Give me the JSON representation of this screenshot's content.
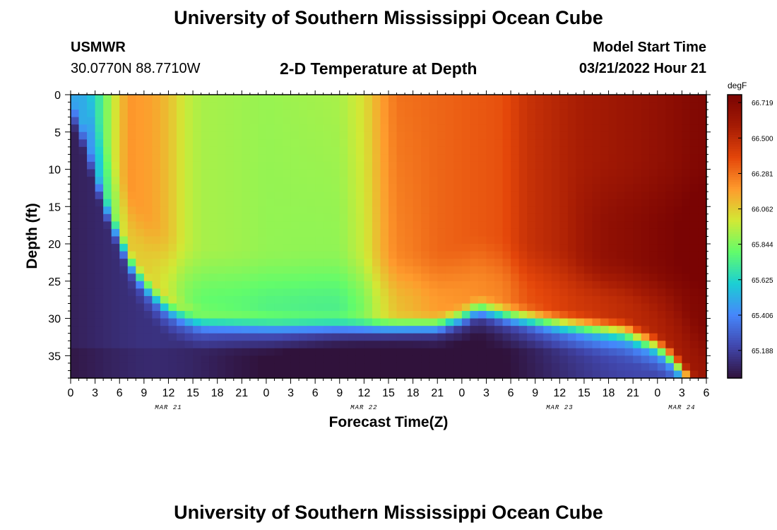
{
  "header": {
    "title": "University of Southern Mississippi Ocean Cube",
    "station_id": "USMWR",
    "coordinates": "30.0770N  88.7710W",
    "plot_title": "2-D Temperature at Depth",
    "model_start_label": "Model Start Time",
    "model_start_value": "03/21/2022 Hour 21"
  },
  "footer": {
    "title": "University of Southern Mississippi Ocean Cube"
  },
  "chart_data": {
    "type": "heatmap",
    "title": "2-D Temperature at Depth",
    "xlabel": "Forecast Time(Z)",
    "ylabel": "Depth (ft)",
    "units": "degF",
    "x_tick_labels": [
      "0",
      "3",
      "6",
      "9",
      "12",
      "15",
      "18",
      "21",
      "0",
      "3",
      "6",
      "9",
      "12",
      "15",
      "18",
      "21",
      "0",
      "3",
      "6",
      "9",
      "12",
      "15",
      "18",
      "21",
      "0",
      "3",
      "6"
    ],
    "date_labels": [
      {
        "label": "MAR 21",
        "tick_index": 4
      },
      {
        "label": "MAR 22",
        "tick_index": 12
      },
      {
        "label": "MAR 23",
        "tick_index": 20
      },
      {
        "label": "MAR 24",
        "tick_index": 25
      }
    ],
    "y_ticks": [
      0,
      5,
      10,
      15,
      20,
      25,
      30,
      35
    ],
    "ylim": [
      38,
      0
    ],
    "x_range_hours": [
      0,
      78
    ],
    "colorbar_ticks": [
      "66.719",
      "66.500",
      "66.281",
      "66.062",
      "65.844",
      "65.625",
      "65.406",
      "65.188"
    ],
    "value_range": [
      65.0,
      66.75
    ],
    "colormap": [
      "#30123b",
      "#4146ac",
      "#4686fb",
      "#1bcfd4",
      "#62fc6b",
      "#d2e935",
      "#fe9b2d",
      "#e4460a",
      "#a51b04",
      "#7a0403"
    ],
    "field_description_hours": "hour index from forecast start; upper layer warms (orange) early, cools to green during Mar 21-22, then warms to dark red by Mar 24; bottom layer below ~28 ft remains cold (blue/purple)"
  }
}
